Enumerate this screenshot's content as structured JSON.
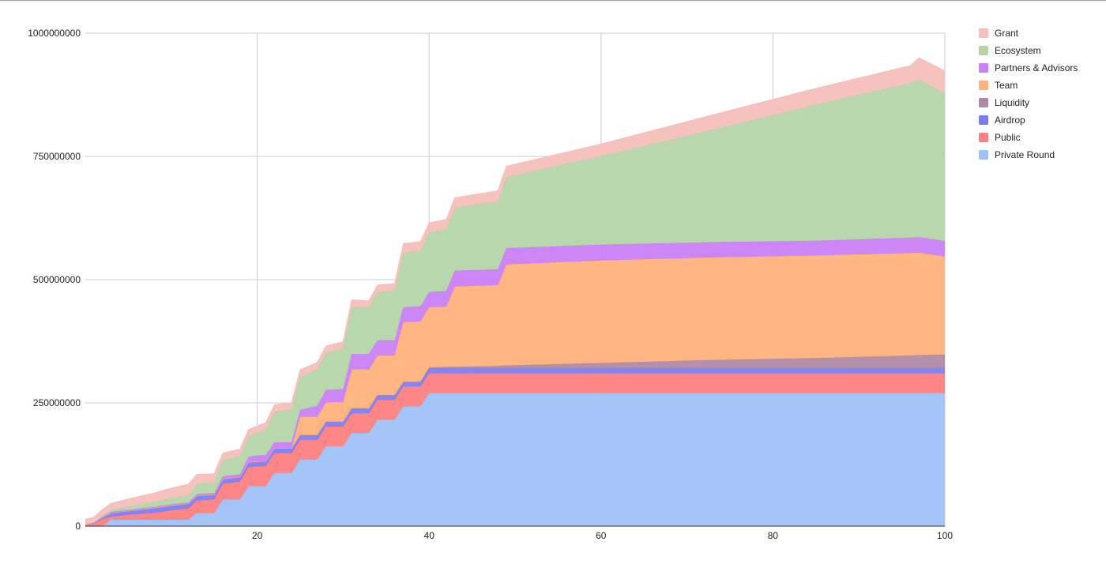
{
  "chart_data": {
    "type": "area",
    "stacked": true,
    "title": "",
    "xlabel": "",
    "ylabel": "",
    "xlim": [
      0,
      100
    ],
    "ylim": [
      0,
      1000000000
    ],
    "x_ticks": [
      20,
      40,
      60,
      80,
      100
    ],
    "y_ticks": [
      0,
      250000000,
      500000000,
      750000000,
      1000000000
    ],
    "x_tick_labels": [
      "20",
      "40",
      "60",
      "80",
      "100"
    ],
    "y_tick_labels": [
      "0",
      "250000000",
      "500000000",
      "750000000",
      "1000000000"
    ],
    "grid": true,
    "legend_position": "right",
    "legend_order": [
      "Grant",
      "Ecosystem",
      "Partners & Advisors",
      "Team",
      "Liquidity",
      "Airdrop",
      "Public",
      "Private Round"
    ],
    "x": [
      0,
      1,
      2,
      3,
      5,
      8,
      10,
      12,
      13,
      15,
      16,
      18,
      19,
      20,
      21,
      22,
      24,
      25,
      27,
      28,
      30,
      31,
      33,
      34,
      36,
      37,
      39,
      40,
      42,
      43,
      48,
      49,
      60,
      73,
      85,
      96,
      97,
      100
    ],
    "series": [
      {
        "name": "Private Round",
        "color": "#a0c1f7",
        "values": [
          0,
          0,
          0,
          13000000,
          13000000,
          13000000,
          13000000,
          13000000,
          27000000,
          27000000,
          54000000,
          54000000,
          81000000,
          81000000,
          81000000,
          108000000,
          108000000,
          135000000,
          135000000,
          162000000,
          162000000,
          189000000,
          189000000,
          216000000,
          216000000,
          243000000,
          243000000,
          270000000,
          270000000,
          270000000,
          270000000,
          270000000,
          270000000,
          270000000,
          270000000,
          270000000,
          270000000,
          270000000
        ]
      },
      {
        "name": "Public",
        "color": "#ff8080",
        "values": [
          3000000,
          5000000,
          14000000,
          6000000,
          10000000,
          14000000,
          19000000,
          23000000,
          25000000,
          27000000,
          32000000,
          36000000,
          39000000,
          40000000,
          41000000,
          40000000,
          40000000,
          40000000,
          40000000,
          40000000,
          40000000,
          40000000,
          40000000,
          40000000,
          40000000,
          40000000,
          40000000,
          40000000,
          40000000,
          40000000,
          40000000,
          40000000,
          40000000,
          40000000,
          40000000,
          40000000,
          40000000,
          40000000
        ]
      },
      {
        "name": "Airdrop",
        "color": "#7b7ef2",
        "values": [
          1000000,
          2000000,
          4000000,
          8000000,
          8000000,
          10000000,
          10000000,
          10000000,
          10000000,
          10000000,
          10000000,
          10000000,
          10000000,
          10000000,
          10000000,
          10000000,
          10000000,
          10000000,
          10000000,
          10000000,
          10000000,
          10000000,
          10000000,
          10000000,
          10000000,
          10000000,
          10000000,
          10000000,
          10000000,
          10000000,
          10000000,
          10000000,
          10000000,
          10000000,
          10000000,
          10000000,
          10000000,
          10000000
        ]
      },
      {
        "name": "Liquidity",
        "color": "#b08aa5",
        "values": [
          0,
          0,
          0,
          0,
          0,
          0,
          0,
          0,
          0,
          0,
          0,
          0,
          0,
          0,
          0,
          0,
          0,
          0,
          0,
          0,
          0,
          0,
          0,
          0,
          0,
          0,
          0,
          2000000,
          3000000,
          3000000,
          5000000,
          6000000,
          11000000,
          17000000,
          21000000,
          26000000,
          27000000,
          28000000
        ]
      },
      {
        "name": "Team",
        "color": "#ffb27b",
        "values": [
          0,
          0,
          0,
          0,
          0,
          0,
          0,
          0,
          0,
          0,
          0,
          0,
          0,
          0,
          0,
          0,
          0,
          37000000,
          37000000,
          39000000,
          40000000,
          79000000,
          79000000,
          80000000,
          80000000,
          121000000,
          122000000,
          122000000,
          122000000,
          163000000,
          164000000,
          205000000,
          208000000,
          208000000,
          208000000,
          208000000,
          208000000,
          199000000
        ]
      },
      {
        "name": "Partners & Advisors",
        "color": "#c97ff5",
        "values": [
          0,
          0,
          1000000,
          2000000,
          2000000,
          2000000,
          2000000,
          2000000,
          3000000,
          3000000,
          5000000,
          5000000,
          11000000,
          12000000,
          12000000,
          12000000,
          12000000,
          14000000,
          22000000,
          25000000,
          26000000,
          31000000,
          31000000,
          31000000,
          31000000,
          30000000,
          31000000,
          31000000,
          32000000,
          32000000,
          32000000,
          33000000,
          32000000,
          31000000,
          30000000,
          31000000,
          31000000,
          31000000
        ]
      },
      {
        "name": "Ecosystem",
        "color": "#b5d5a8",
        "values": [
          0,
          1000000,
          2000000,
          4000000,
          7000000,
          10000000,
          13000000,
          15000000,
          20000000,
          22000000,
          33000000,
          37000000,
          41000000,
          46000000,
          52000000,
          62000000,
          66000000,
          67000000,
          74000000,
          75000000,
          82000000,
          96000000,
          95000000,
          98000000,
          101000000,
          111000000,
          113000000,
          121000000,
          126000000,
          128000000,
          138000000,
          144000000,
          180000000,
          228000000,
          276000000,
          314000000,
          319000000,
          300000000
        ]
      },
      {
        "name": "Grant",
        "color": "#f5bfbb",
        "values": [
          10000000,
          10000000,
          13000000,
          13000000,
          15000000,
          18000000,
          20000000,
          22000000,
          20000000,
          17000000,
          14000000,
          14000000,
          14000000,
          14000000,
          14000000,
          14000000,
          14000000,
          14000000,
          14000000,
          14000000,
          14000000,
          14000000,
          13000000,
          14000000,
          14000000,
          18000000,
          18000000,
          19000000,
          19000000,
          20000000,
          21000000,
          22000000,
          24000000,
          30000000,
          33000000,
          35000000,
          45000000,
          45000000
        ]
      }
    ]
  }
}
